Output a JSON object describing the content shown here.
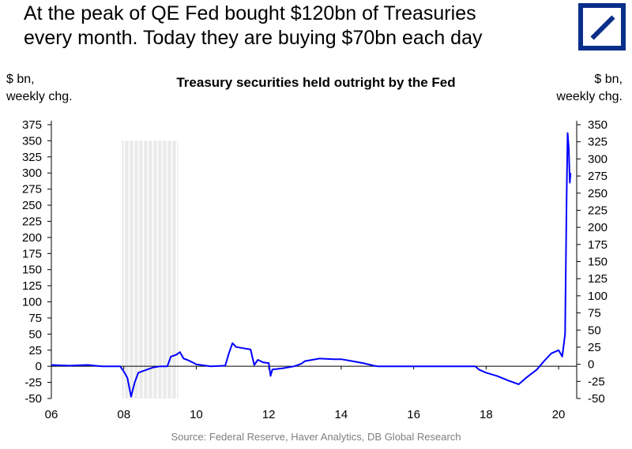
{
  "headline": {
    "line1": "At the peak of QE Fed bought $120bn of Treasuries",
    "line2": "every month. Today they are buying $70bn each day"
  },
  "logo": "deutsche-bank-logo",
  "source": "Source:  Federal Reserve, Haver Analytics, DB Global Research",
  "colors": {
    "series": "#0000ff",
    "recession": "#d9d9d9",
    "logo": "#0a2f8a"
  },
  "chart_data": {
    "type": "line",
    "title": "Treasury securities held outright by the Fed",
    "left_axis_label": [
      "$ bn,",
      "weekly chg."
    ],
    "right_axis_label": [
      "$ bn,",
      "weekly chg."
    ],
    "x_ticks": [
      "06",
      "08",
      "10",
      "12",
      "14",
      "16",
      "18",
      "20"
    ],
    "xlim": [
      2006,
      2020.5
    ],
    "left_y": {
      "lim": [
        -50,
        375
      ],
      "ticks": [
        -50,
        -25,
        0,
        25,
        50,
        75,
        100,
        125,
        150,
        175,
        200,
        225,
        250,
        275,
        300,
        325,
        350,
        375
      ]
    },
    "right_y": {
      "lim": [
        -50,
        350
      ],
      "ticks": [
        -50,
        -25,
        0,
        25,
        50,
        75,
        100,
        125,
        150,
        175,
        200,
        225,
        250,
        275,
        300,
        325,
        350
      ]
    },
    "recession_shading": [
      2007.95,
      2009.5
    ],
    "series": [
      {
        "points": [
          [
            2006.0,
            2
          ],
          [
            2006.5,
            1
          ],
          [
            2007.0,
            2
          ],
          [
            2007.4,
            0
          ],
          [
            2007.9,
            0
          ],
          [
            2008.0,
            -8
          ],
          [
            2008.1,
            -18
          ],
          [
            2008.2,
            -47
          ],
          [
            2008.3,
            -25
          ],
          [
            2008.4,
            -10
          ],
          [
            2008.6,
            -6
          ],
          [
            2008.8,
            -2
          ],
          [
            2009.0,
            0
          ],
          [
            2009.2,
            0
          ],
          [
            2009.3,
            15
          ],
          [
            2009.45,
            18
          ],
          [
            2009.55,
            22
          ],
          [
            2009.65,
            12
          ],
          [
            2009.75,
            10
          ],
          [
            2009.9,
            6
          ],
          [
            2010.0,
            3
          ],
          [
            2010.4,
            0
          ],
          [
            2010.8,
            1
          ],
          [
            2010.9,
            20
          ],
          [
            2011.0,
            36
          ],
          [
            2011.1,
            30
          ],
          [
            2011.3,
            28
          ],
          [
            2011.5,
            26
          ],
          [
            2011.6,
            2
          ],
          [
            2011.7,
            10
          ],
          [
            2011.85,
            6
          ],
          [
            2012.0,
            5
          ],
          [
            2012.05,
            -15
          ],
          [
            2012.1,
            -5
          ],
          [
            2012.4,
            -3
          ],
          [
            2012.7,
            0
          ],
          [
            2012.9,
            4
          ],
          [
            2013.0,
            8
          ],
          [
            2013.4,
            12
          ],
          [
            2013.8,
            11
          ],
          [
            2014.0,
            11
          ],
          [
            2014.3,
            8
          ],
          [
            2014.6,
            5
          ],
          [
            2014.9,
            1
          ],
          [
            2015.0,
            0
          ],
          [
            2016.0,
            0
          ],
          [
            2017.0,
            0
          ],
          [
            2017.7,
            0
          ],
          [
            2017.8,
            -5
          ],
          [
            2018.0,
            -10
          ],
          [
            2018.3,
            -15
          ],
          [
            2018.6,
            -22
          ],
          [
            2018.9,
            -28
          ],
          [
            2019.1,
            -18
          ],
          [
            2019.4,
            -5
          ],
          [
            2019.6,
            8
          ],
          [
            2019.8,
            20
          ],
          [
            2020.0,
            25
          ],
          [
            2020.1,
            15
          ],
          [
            2020.18,
            50
          ],
          [
            2020.22,
            260
          ],
          [
            2020.25,
            362
          ],
          [
            2020.28,
            340
          ],
          [
            2020.31,
            285
          ],
          [
            2020.33,
            300
          ]
        ]
      }
    ]
  }
}
